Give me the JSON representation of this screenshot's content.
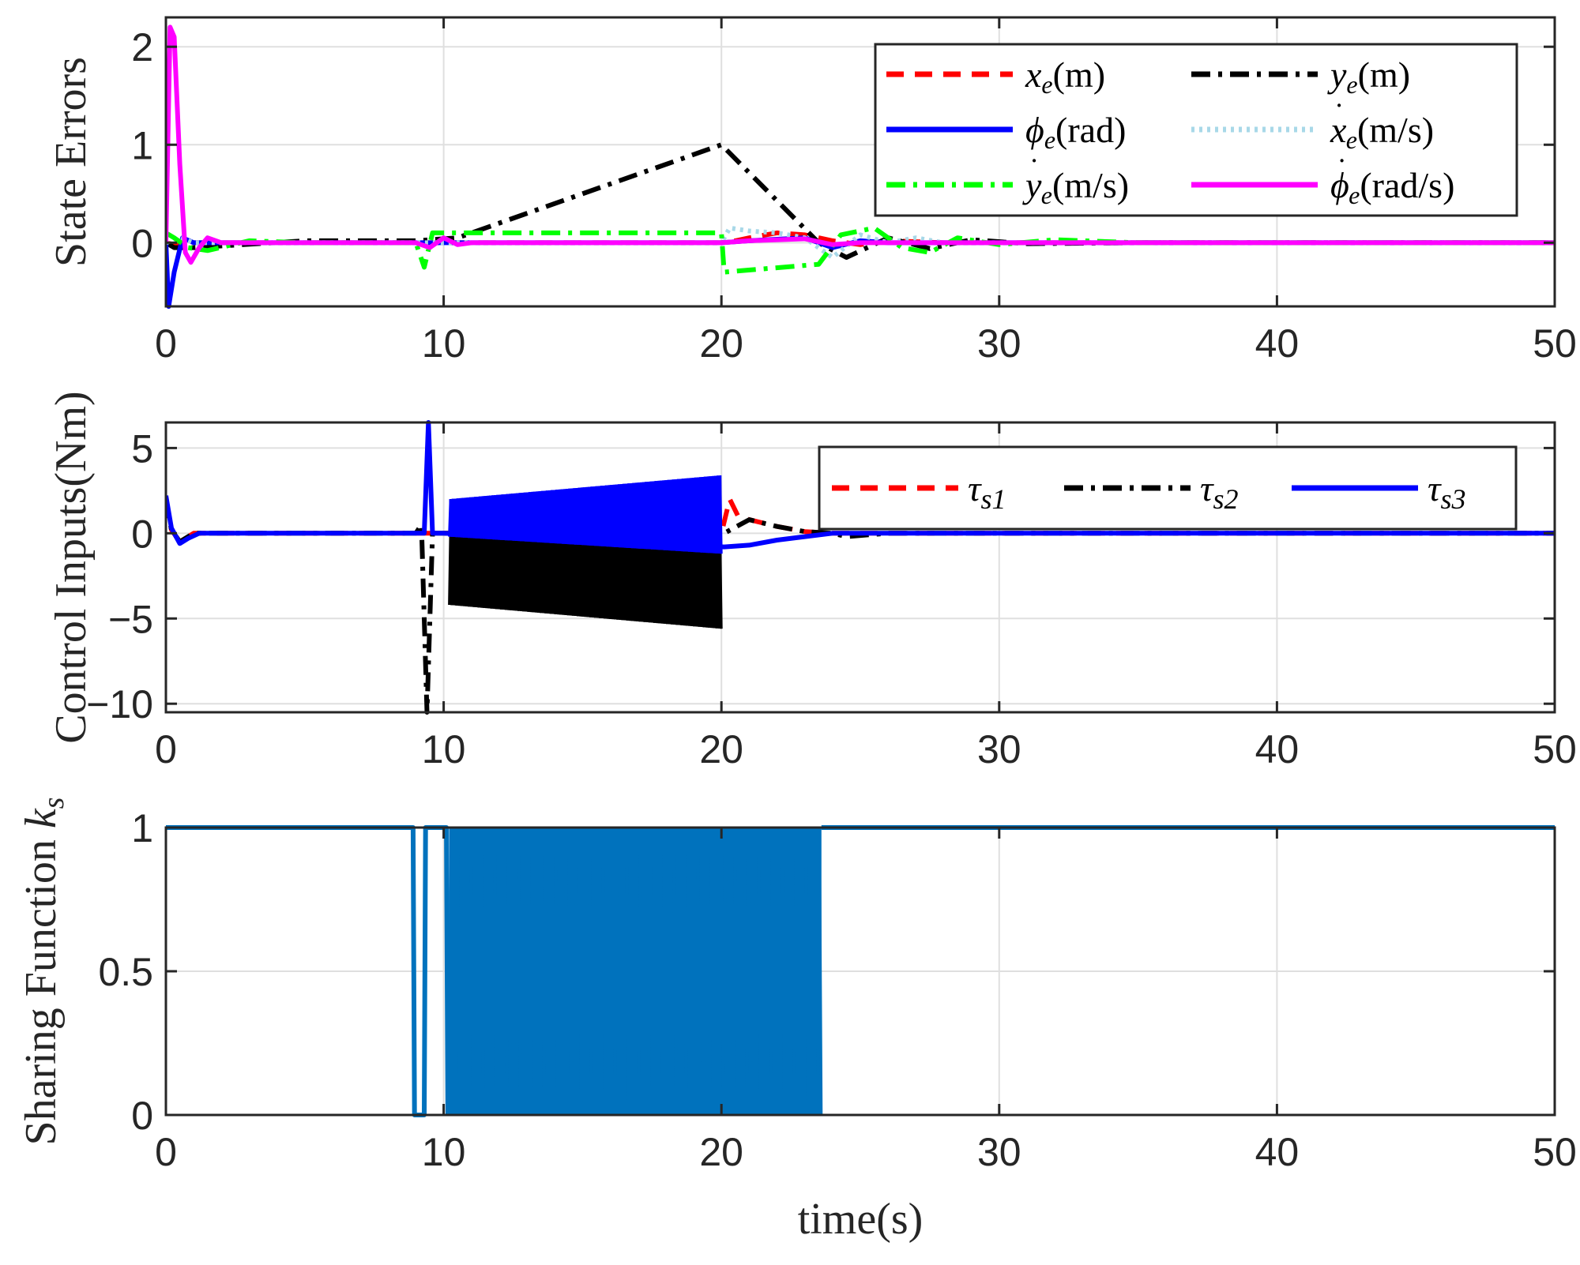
{
  "chart_data": [
    {
      "type": "line",
      "ylabel": "State Errors",
      "xlim": [
        0,
        50
      ],
      "ylim": [
        -0.65,
        2.3
      ],
      "xticks": [
        "0",
        "10",
        "20",
        "30",
        "40",
        "50"
      ],
      "yticks": [
        "0",
        "1",
        "2"
      ],
      "ytick_values": [
        0,
        1,
        2
      ],
      "grid": true,
      "legend_position": "top-right",
      "series": [
        {
          "name": "x_e(m)",
          "color": "#ff0000",
          "style": "dashed",
          "x": [
            0,
            0.3,
            1,
            9,
            10,
            20,
            20.5,
            21,
            22,
            23,
            24,
            25,
            26,
            27,
            28,
            30,
            35,
            50
          ],
          "y": [
            0,
            -0.02,
            0,
            0,
            0,
            0,
            0.02,
            0.05,
            0.1,
            0.08,
            0.02,
            -0.02,
            0.02,
            0.01,
            0,
            0,
            0,
            0
          ]
        },
        {
          "name": "y_e(m)",
          "color": "#000000",
          "style": "dashdot",
          "x": [
            0,
            0.3,
            1,
            5,
            9,
            10.5,
            20,
            23.5,
            24.5,
            26,
            27.5,
            29,
            31,
            35,
            50
          ],
          "y": [
            0,
            -0.05,
            -0.05,
            0.02,
            0.02,
            0.05,
            1.0,
            0.0,
            -0.15,
            0.05,
            -0.06,
            0.03,
            -0.01,
            0,
            0
          ]
        },
        {
          "name": "φ_e(rad)",
          "color": "#0000ff",
          "style": "solid",
          "x": [
            0,
            0.1,
            0.3,
            0.6,
            1,
            9,
            20,
            21,
            23,
            24,
            25,
            26,
            50
          ],
          "y": [
            0,
            -0.65,
            -0.3,
            0.05,
            0,
            0,
            0,
            0.02,
            0.05,
            -0.05,
            0.02,
            0,
            0
          ]
        },
        {
          "name": "ẋ_e(m/s)",
          "color": "#a8d8e8",
          "style": "dotted",
          "x": [
            0,
            0.5,
            1,
            20,
            20.3,
            21,
            22,
            23,
            24,
            25,
            26,
            27,
            28,
            30,
            50
          ],
          "y": [
            0,
            0.05,
            0,
            0,
            0.15,
            0.12,
            0.1,
            0.05,
            -0.15,
            0.08,
            0,
            0.05,
            0,
            0,
            0
          ]
        },
        {
          "name": "ẏ_e(m/s)",
          "color": "#00ff00",
          "style": "dashdot",
          "x": [
            0,
            0.3,
            0.8,
            1.5,
            3,
            5,
            9,
            9.3,
            9.6,
            10,
            20,
            20.1,
            23.5,
            24.3,
            25.5,
            26.5,
            27.5,
            28.5,
            30,
            32,
            35,
            38,
            50
          ],
          "y": [
            0.1,
            0.05,
            -0.05,
            -0.08,
            0.02,
            0,
            0,
            -0.25,
            0.1,
            0.1,
            0.1,
            -0.3,
            -0.22,
            0.08,
            0.15,
            -0.05,
            -0.1,
            0.05,
            -0.02,
            0.03,
            0,
            0,
            0
          ]
        },
        {
          "name": "φ̇_e(rad/s)",
          "color": "#ff00ff",
          "style": "solid",
          "x": [
            0,
            0.15,
            0.3,
            0.5,
            0.7,
            0.9,
            1.2,
            1.5,
            2,
            5,
            9,
            9.5,
            10,
            10.5,
            11,
            20,
            21,
            23,
            24,
            25,
            50
          ],
          "y": [
            0,
            2.2,
            2.1,
            0.8,
            -0.1,
            -0.2,
            -0.05,
            0.05,
            0,
            0,
            0,
            -0.05,
            0.05,
            -0.02,
            0,
            0,
            0.02,
            0.04,
            -0.02,
            0,
            0
          ]
        }
      ],
      "legend_labels": [
        {
          "base": "x",
          "dot": "",
          "sub": "e",
          "unit": "(m)"
        },
        {
          "base": "y",
          "dot": "",
          "sub": "e",
          "unit": "(m)"
        },
        {
          "base": "ϕ",
          "dot": "",
          "sub": "e",
          "unit": "(rad)"
        },
        {
          "base": "x",
          "dot": "˙",
          "sub": "e",
          "unit": "(m/s)"
        },
        {
          "base": "y",
          "dot": "˙",
          "sub": "e",
          "unit": "(m/s)"
        },
        {
          "base": "ϕ",
          "dot": "˙",
          "sub": "e",
          "unit": "(rad/s)"
        }
      ]
    },
    {
      "type": "line",
      "ylabel": "Control Inputs(Nm)",
      "xlim": [
        0,
        50
      ],
      "ylim": [
        -10.5,
        6.5
      ],
      "xticks": [
        "0",
        "10",
        "20",
        "30",
        "40",
        "50"
      ],
      "yticks": [
        "−10",
        "−5",
        "0",
        "5"
      ],
      "ytick_values": [
        -10,
        -5,
        0,
        5
      ],
      "grid": true,
      "legend_position": "top-right",
      "series": [
        {
          "name": "τs1",
          "color": "#ff0000",
          "style": "dashed",
          "x": [
            0,
            0.2,
            0.5,
            1,
            9,
            20,
            20.3,
            20.6,
            21,
            22,
            23,
            24,
            50
          ],
          "y": [
            2.0,
            0.2,
            -0.5,
            0,
            0,
            0,
            2.0,
            1.0,
            0.8,
            0.4,
            0.1,
            0,
            0
          ],
          "band": null
        },
        {
          "name": "τs2",
          "color": "#000000",
          "style": "dashdot",
          "x": [
            0,
            0.2,
            0.5,
            1,
            9,
            9.2,
            9.4,
            9.6,
            10,
            20.1,
            21,
            22,
            23,
            24,
            24.5,
            26,
            50
          ],
          "y": [
            2.0,
            0.2,
            -0.5,
            0,
            0,
            0.5,
            -10.5,
            0,
            0,
            0,
            0.8,
            0.4,
            0.1,
            0,
            -0.2,
            0,
            0
          ],
          "band": {
            "x0": 10.2,
            "x1": 20.0,
            "lo_start": -4.2,
            "lo_end": -5.6,
            "hi_start": 0.3,
            "hi_end": -0.2
          }
        },
        {
          "name": "τs3",
          "color": "#0000ff",
          "style": "solid",
          "x": [
            0,
            0.2,
            0.5,
            0.8,
            1.2,
            9,
            9.3,
            9.45,
            9.6,
            10,
            20.1,
            21,
            22,
            23,
            24,
            50
          ],
          "y": [
            2.2,
            0.3,
            -0.6,
            -0.3,
            0,
            0,
            0,
            6.5,
            0,
            0,
            -0.8,
            -0.7,
            -0.4,
            -0.2,
            0,
            0
          ],
          "band": {
            "x0": 10.2,
            "x1": 20.0,
            "lo_start": -0.2,
            "lo_end": -1.2,
            "hi_start": 2.0,
            "hi_end": 3.4
          }
        }
      ],
      "legend_labels": [
        {
          "base": "τ",
          "sub": "s1"
        },
        {
          "base": "τ",
          "sub": "s2"
        },
        {
          "base": "τ",
          "sub": "s3"
        }
      ]
    },
    {
      "type": "line",
      "ylabel": "Sharing Function",
      "ylabel_symbol": {
        "base": "k",
        "sub": "s"
      },
      "xlabel": "time(s)",
      "xlim": [
        0,
        50
      ],
      "ylim": [
        0,
        1
      ],
      "xticks": [
        "0",
        "10",
        "20",
        "30",
        "40",
        "50"
      ],
      "yticks": [
        "0",
        "0.5",
        "1"
      ],
      "ytick_values": [
        0,
        0.5,
        1
      ],
      "grid": true,
      "series": [
        {
          "name": "",
          "color": "#0072bd",
          "style": "solid",
          "x": [
            0,
            8.9,
            8.95,
            9.3,
            9.35,
            9.5,
            9.55,
            10.1,
            10.15
          ],
          "y": [
            1,
            1,
            0,
            0,
            1,
            1,
            1,
            1,
            0
          ],
          "band": {
            "x0": 10.2,
            "x1": 23.6,
            "lo_start": 0,
            "lo_end": 0,
            "hi_start": 1,
            "hi_end": 1
          },
          "x_after": [
            23.6,
            50
          ],
          "y_after": [
            1,
            1
          ]
        }
      ]
    }
  ]
}
